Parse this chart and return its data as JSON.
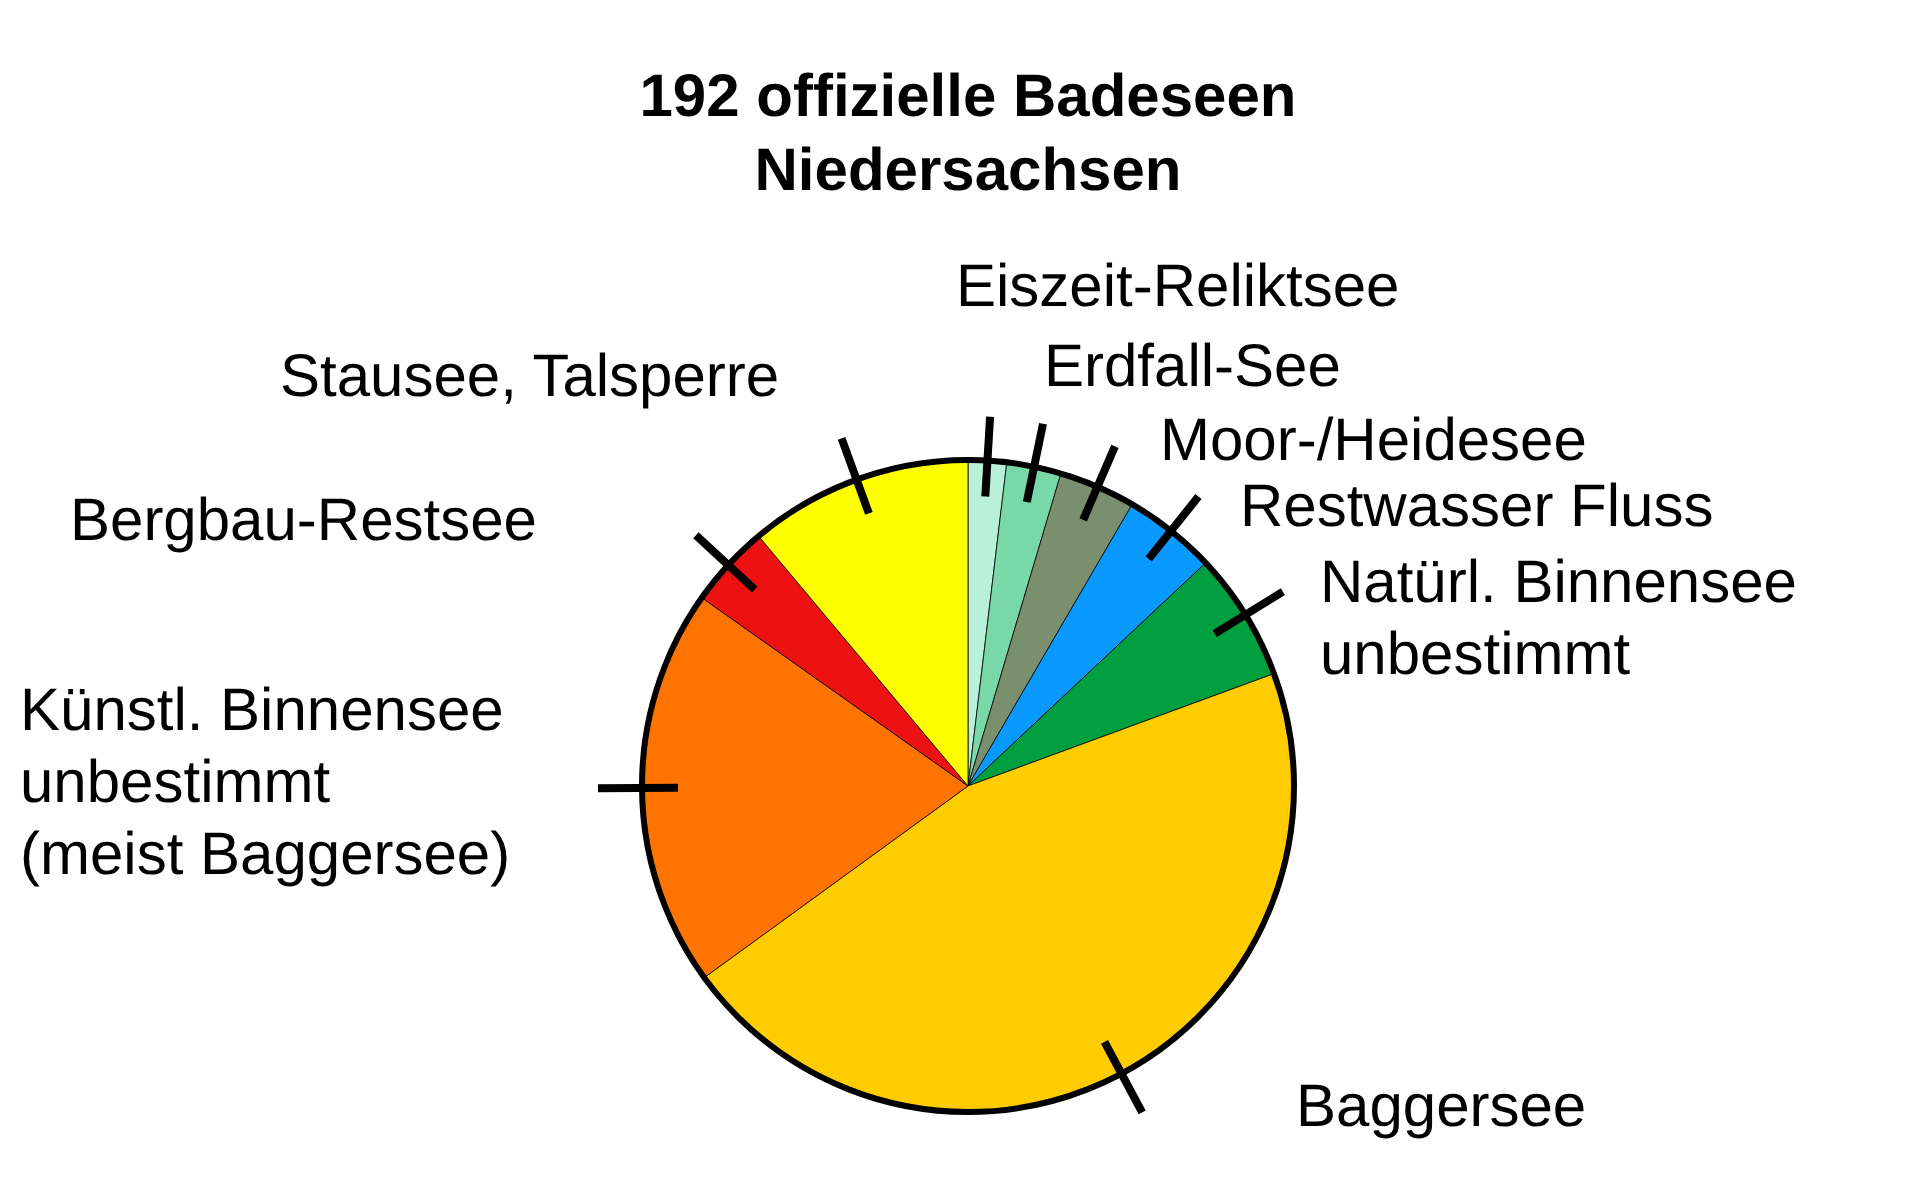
{
  "chart_data": {
    "type": "pie",
    "title": "192 offizielle Badeseen\nNiedersachsen",
    "categories": [
      "Eiszeit-Reliktsee",
      "Erdfall-See",
      "Moor-/Heidesee",
      "Restwasser Fluss",
      "Natürl. Binnensee\nunbestimmt",
      "Baggersee",
      "Künstl. Binnensee\nunbestimmt\n(meist Baggersee)",
      "Bergbau-Restsee",
      "Stausee, Talsperre"
    ],
    "values": [
      1.9,
      2.7,
      3.8,
      4.6,
      6.4,
      45.6,
      19.8,
      4.1,
      11.1
    ],
    "colors": [
      "#b8f0d8",
      "#78d8a8",
      "#7a8f6e",
      "#0a99ff",
      "#00a040",
      "#ffcc00",
      "#ff7300",
      "#ee1111",
      "#ffff00"
    ]
  }
}
